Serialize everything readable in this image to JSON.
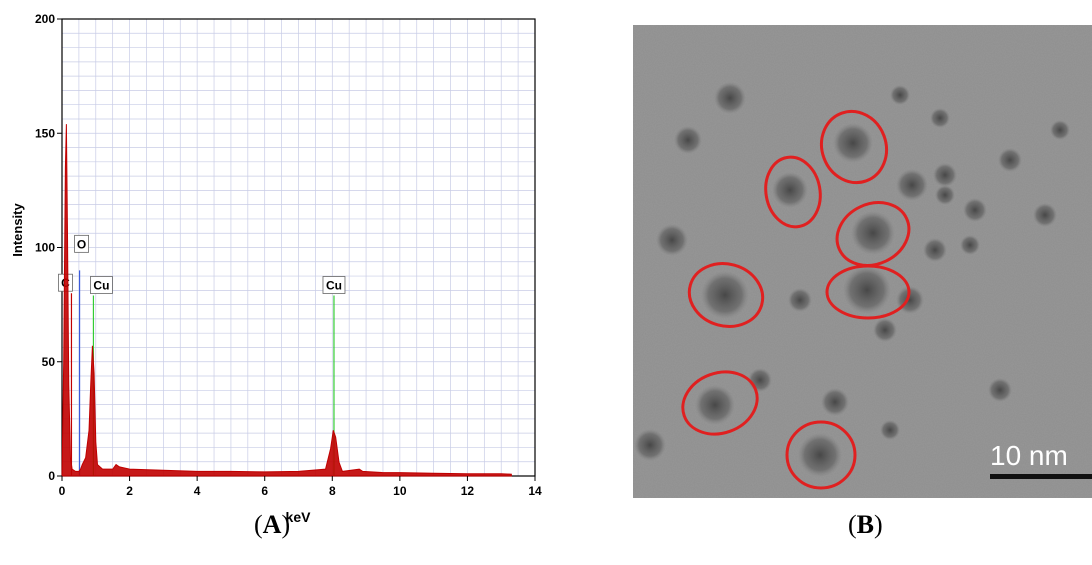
{
  "chart_data": {
    "type": "line",
    "xlabel": "keV",
    "ylabel": "Intensity",
    "xlim": [
      0,
      14
    ],
    "ylim": [
      0,
      200
    ],
    "x_ticks": [
      "0",
      "2",
      "4",
      "6",
      "8",
      "10",
      "12",
      "14"
    ],
    "y_ticks": [
      "0",
      "50",
      "100",
      "150",
      "200"
    ],
    "grid": true,
    "peaks": [
      {
        "label": "C",
        "x": 0.28,
        "y": 2,
        "marker_top": 80,
        "color": "#c00000"
      },
      {
        "label": "O",
        "x": 0.52,
        "y": 3,
        "marker_top": 90,
        "color": "#3b5bdb"
      },
      {
        "label": "Cu",
        "x": 0.93,
        "y": 57,
        "marker_top": 79,
        "color": "#33cc33"
      },
      {
        "label": "Cu",
        "x": 8.05,
        "y": 20,
        "marker_top": 79,
        "color": "#33cc33"
      }
    ],
    "spectrum": [
      [
        0.0,
        0
      ],
      [
        0.05,
        50
      ],
      [
        0.1,
        135
      ],
      [
        0.13,
        154
      ],
      [
        0.16,
        110
      ],
      [
        0.2,
        40
      ],
      [
        0.25,
        8
      ],
      [
        0.3,
        3
      ],
      [
        0.4,
        2
      ],
      [
        0.5,
        2
      ],
      [
        0.55,
        3
      ],
      [
        0.6,
        5
      ],
      [
        0.7,
        8
      ],
      [
        0.8,
        20
      ],
      [
        0.85,
        40
      ],
      [
        0.9,
        57
      ],
      [
        0.95,
        45
      ],
      [
        1.0,
        15
      ],
      [
        1.05,
        5
      ],
      [
        1.2,
        3
      ],
      [
        1.5,
        3
      ],
      [
        1.6,
        5
      ],
      [
        1.7,
        4
      ],
      [
        2.0,
        3
      ],
      [
        3.0,
        2.5
      ],
      [
        4.0,
        2
      ],
      [
        5.0,
        2
      ],
      [
        6.0,
        1.8
      ],
      [
        7.0,
        2
      ],
      [
        7.8,
        3
      ],
      [
        7.95,
        12
      ],
      [
        8.03,
        20
      ],
      [
        8.1,
        17
      ],
      [
        8.2,
        6
      ],
      [
        8.3,
        2
      ],
      [
        8.8,
        3
      ],
      [
        8.9,
        2
      ],
      [
        9.5,
        1.5
      ],
      [
        10.0,
        1.5
      ],
      [
        11.0,
        1.2
      ],
      [
        12.0,
        1
      ],
      [
        13.0,
        1
      ],
      [
        13.3,
        0.8
      ]
    ],
    "colors": {
      "spectrum": "#c00000",
      "grid": "#c8cce6",
      "markers": "#33cc33"
    }
  },
  "tem_image": {
    "scale_bar_label": "10 nm",
    "highlight_color": "#e02020"
  },
  "captions": {
    "a": {
      "open": "(",
      "letter": "A",
      "close": ")"
    },
    "b": {
      "open": "(",
      "letter": "B",
      "close": ")"
    }
  }
}
